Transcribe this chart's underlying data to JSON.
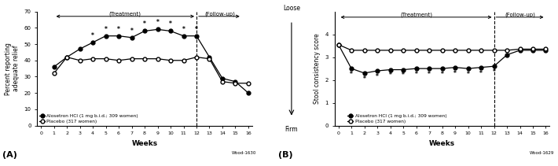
{
  "panel_A": {
    "alosetron_y": [
      36,
      42,
      47,
      51,
      55,
      55,
      54,
      58,
      59,
      58,
      55,
      55,
      42,
      29,
      27,
      20
    ],
    "placebo_y": [
      32,
      42,
      40,
      41,
      41,
      40,
      41,
      41,
      41,
      40,
      40,
      42,
      41,
      27,
      26,
      26
    ],
    "all_weeks": [
      1,
      2,
      3,
      4,
      5,
      6,
      7,
      8,
      9,
      10,
      11,
      12,
      13,
      14,
      15,
      16
    ],
    "star_map": {
      "4": 51,
      "5": 55,
      "6": 55,
      "7": 54,
      "8": 58,
      "9": 59,
      "10": 58,
      "11": 55,
      "12": 55
    },
    "ylabel": "Percent reporting\nadequate relief",
    "xlabel": "Weeks",
    "ylim": [
      0,
      70
    ],
    "yticks": [
      0,
      10,
      20,
      30,
      40,
      50,
      60,
      70
    ],
    "xticks": [
      0,
      1,
      2,
      3,
      4,
      5,
      6,
      7,
      8,
      9,
      10,
      11,
      12,
      13,
      14,
      15,
      16
    ],
    "dashed_x": 12,
    "panel_label": "(A)",
    "legend_alosetron": "Alosetron HCl (1 mg b.i.d.; 309 women)",
    "legend_placebo": "Placebo (317 women)"
  },
  "panel_B": {
    "alosetron_y": [
      3.55,
      2.5,
      2.3,
      2.4,
      2.45,
      2.45,
      2.5,
      2.5,
      2.5,
      2.55,
      2.5,
      2.55,
      2.6,
      3.1,
      3.3,
      3.3,
      3.3
    ],
    "placebo_y": [
      3.55,
      3.3,
      3.3,
      3.3,
      3.3,
      3.3,
      3.3,
      3.3,
      3.3,
      3.3,
      3.3,
      3.3,
      3.3,
      3.3,
      3.35,
      3.35,
      3.35
    ],
    "all_weeks": [
      0,
      1,
      2,
      3,
      4,
      5,
      6,
      7,
      8,
      9,
      10,
      11,
      12,
      13,
      14,
      15,
      16
    ],
    "star_map": {
      "1": 2.5,
      "2": 2.3,
      "3": 2.4,
      "4": 2.45,
      "5": 2.45,
      "6": 2.5,
      "7": 2.5,
      "8": 2.5,
      "9": 2.55,
      "10": 2.5,
      "11": 2.55,
      "12": 2.6
    },
    "ylabel": "Stool consistency score",
    "xlabel": "Weeks",
    "ylim": [
      0,
      5
    ],
    "yticks": [
      0,
      1,
      2,
      3,
      4
    ],
    "xticks": [
      0,
      1,
      2,
      3,
      4,
      5,
      6,
      7,
      8,
      9,
      10,
      11,
      12,
      13,
      14,
      15,
      16
    ],
    "dashed_x": 12,
    "panel_label": "(B)",
    "legend_alosetron": "Alosetron HCl (1 mg b.i.d.; 309 women)",
    "legend_placebo": "Placebo (317 women)",
    "loose_label": "Loose",
    "firm_label": "Firm"
  },
  "watermark_A": "Wood-1630",
  "watermark_B": "Wood-1629"
}
